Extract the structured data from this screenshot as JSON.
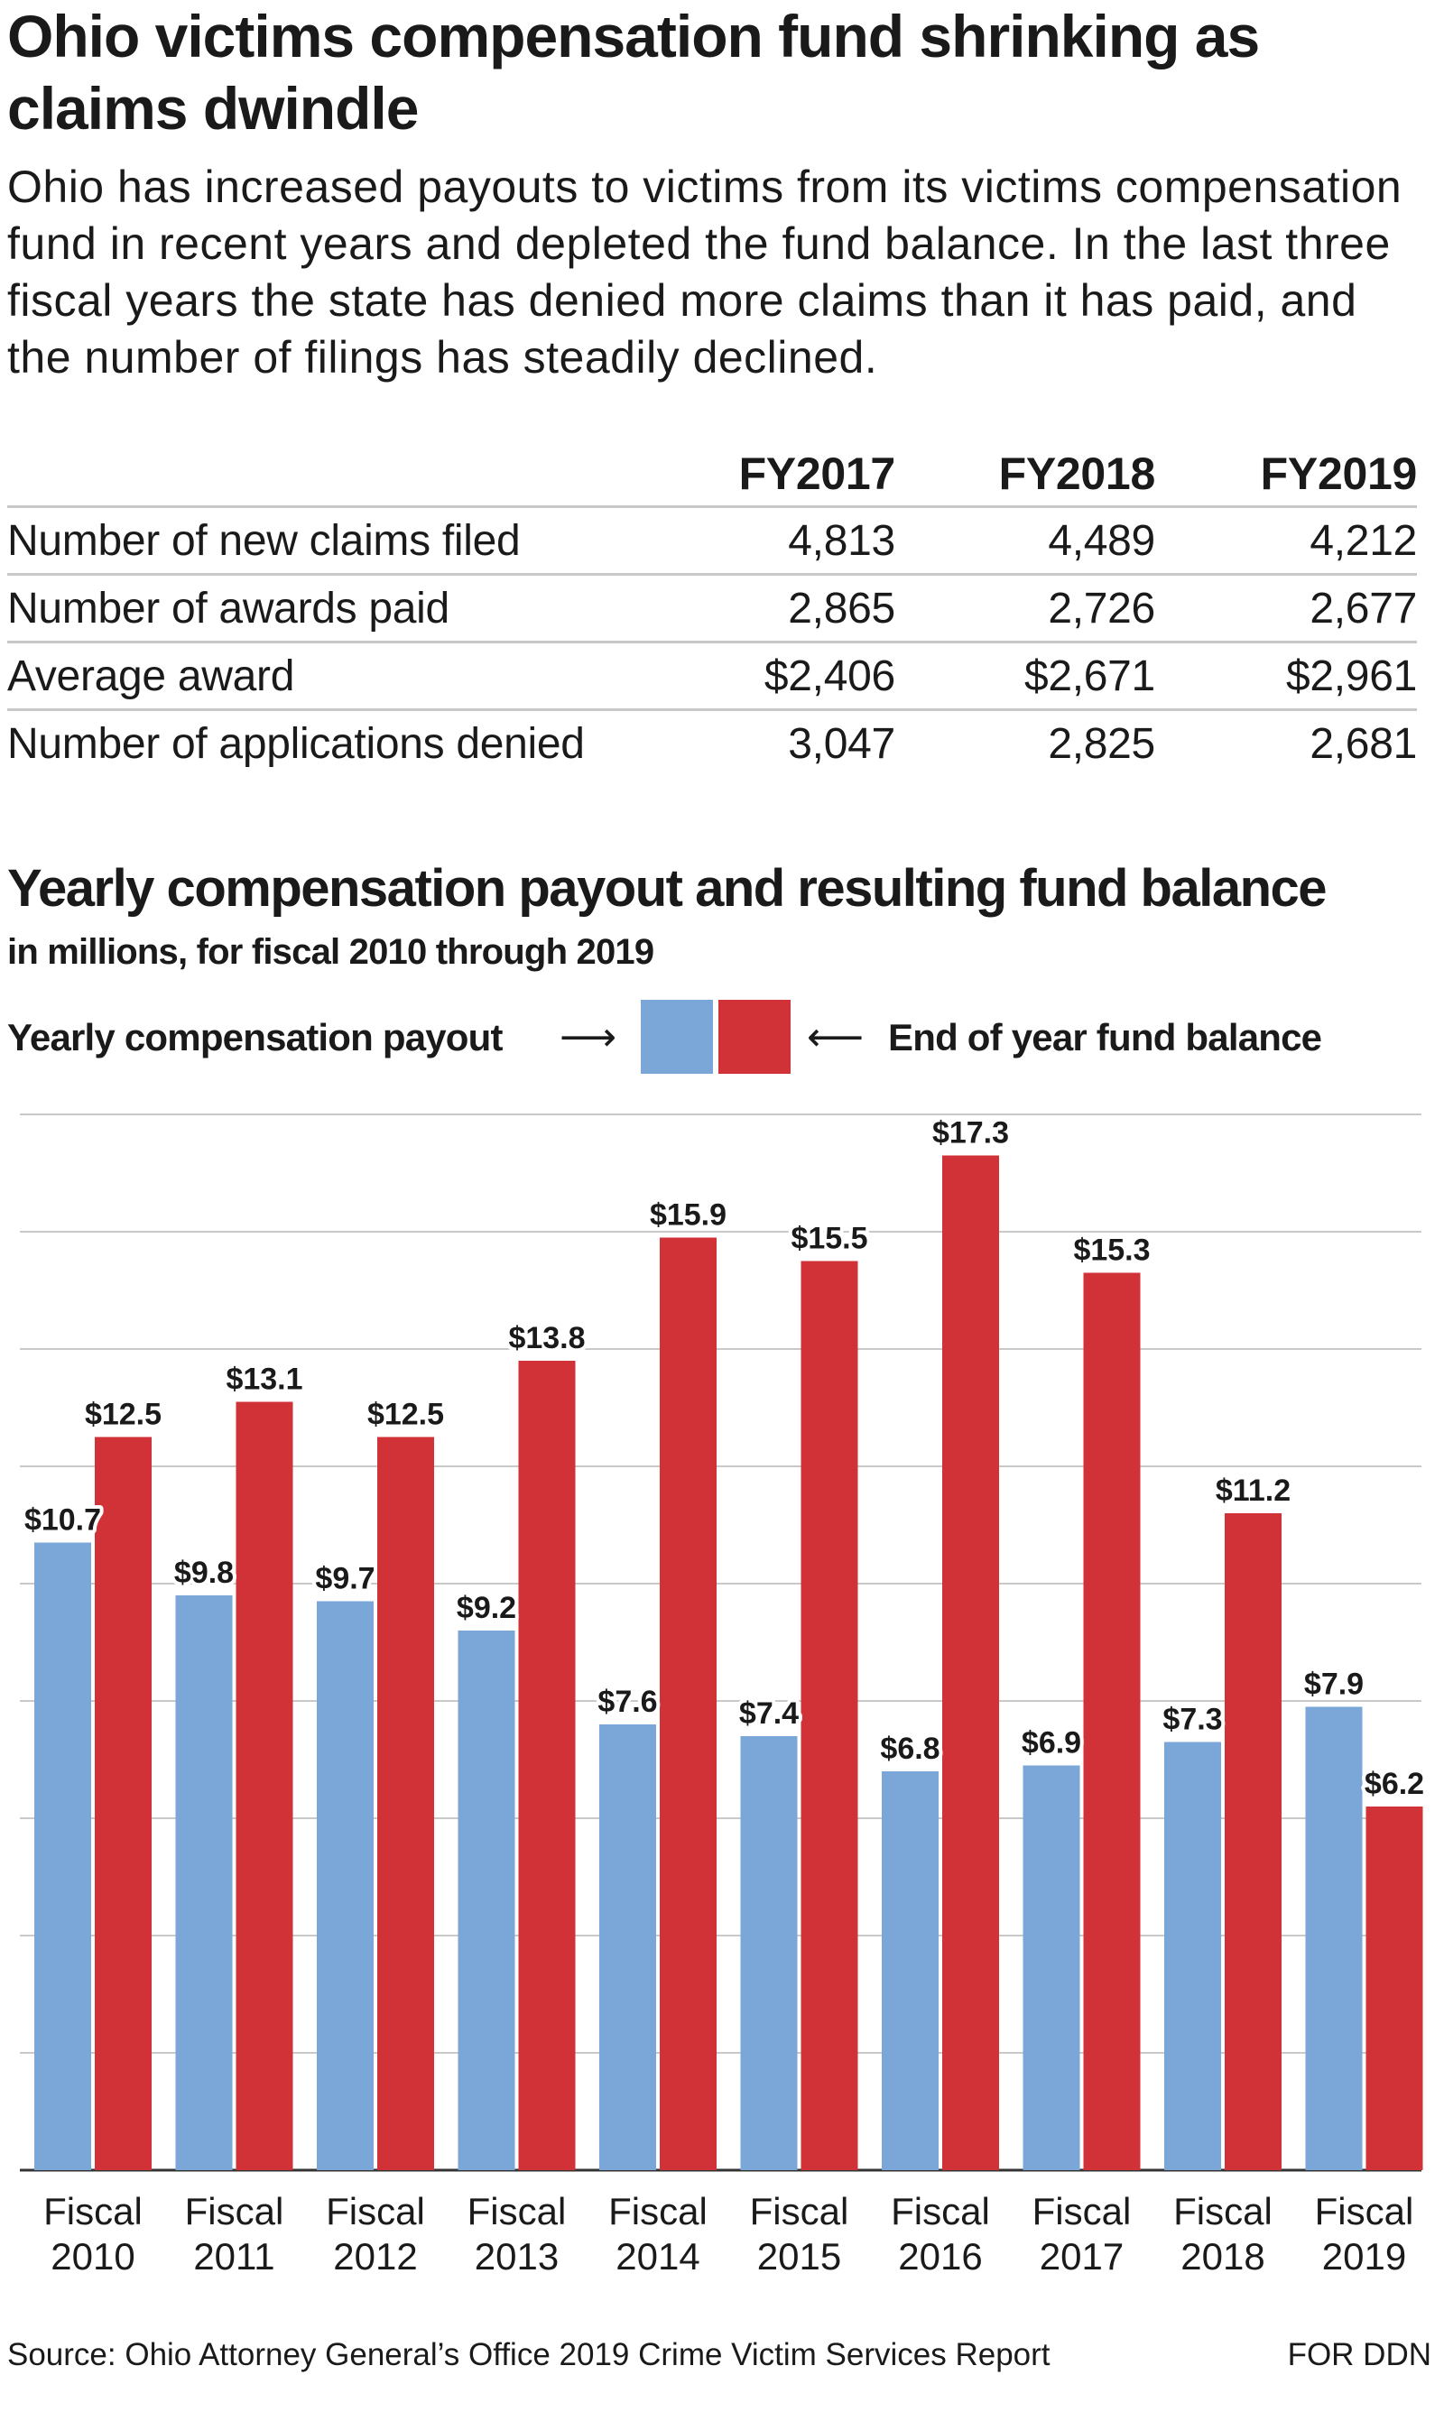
{
  "header": {
    "title": "Ohio victims compensation fund shrinking as claims dwindle",
    "intro": "Ohio has increased payouts to victims from its victims compensation fund in recent years and depleted the fund balance. In the last three fiscal years the state has denied more claims than it has paid, and the number of filings has steadily declined."
  },
  "table": {
    "columns": [
      "",
      "FY2017",
      "FY2018",
      "FY2019"
    ],
    "rows": [
      {
        "label": "Number of new claims filed",
        "values": [
          "4,813",
          "4,489",
          "4,212"
        ]
      },
      {
        "label": "Number of awards paid",
        "values": [
          "2,865",
          "2,726",
          "2,677"
        ]
      },
      {
        "label": "Average award",
        "values": [
          "$2,406",
          "$2,671",
          "$2,961"
        ]
      },
      {
        "label": "Number of applications denied",
        "values": [
          "3,047",
          "2,825",
          "2,681"
        ]
      }
    ]
  },
  "chart_data": {
    "type": "bar",
    "title": "Yearly compensation payout and resulting fund balance",
    "subtitle": "in millions, for fiscal 2010 through 2019",
    "categories": [
      [
        "Fiscal",
        "2010"
      ],
      [
        "Fiscal",
        "2011"
      ],
      [
        "Fiscal",
        "2012"
      ],
      [
        "Fiscal",
        "2013"
      ],
      [
        "Fiscal",
        "2014"
      ],
      [
        "Fiscal",
        "2015"
      ],
      [
        "Fiscal",
        "2016"
      ],
      [
        "Fiscal",
        "2017"
      ],
      [
        "Fiscal",
        "2018"
      ],
      [
        "Fiscal",
        "2019"
      ]
    ],
    "series": [
      {
        "name": "Yearly compensation payout",
        "color": "#7aa6d8",
        "values": [
          10.7,
          9.8,
          9.7,
          9.2,
          7.6,
          7.4,
          6.8,
          6.9,
          7.3,
          7.9
        ],
        "labels": [
          "$10.7",
          "$9.8",
          "$9.7",
          "$9.2",
          "$7.6",
          "$7.4",
          "$6.8",
          "$6.9",
          "$7.3",
          "$7.9"
        ]
      },
      {
        "name": "End of year fund balance",
        "color": "#d13237",
        "values": [
          12.5,
          13.1,
          12.5,
          13.8,
          15.9,
          15.5,
          17.3,
          15.3,
          11.2,
          6.2
        ],
        "labels": [
          "$12.5",
          "$13.1",
          "$12.5",
          "$13.8",
          "$15.9",
          "$15.5",
          "$17.3",
          "$15.3",
          "$11.2",
          "$6.2"
        ]
      }
    ],
    "ylim": [
      0,
      18
    ],
    "grid": true,
    "xlabel": "",
    "ylabel": ""
  },
  "legend": {
    "left_label": "Yearly compensation payout",
    "right_label": "End of year fund balance",
    "left_arrow": "⟶",
    "right_arrow": "⟵",
    "blue": "#7aa6d8",
    "red": "#d13237"
  },
  "footer": {
    "source": "Source: Ohio Attorney General’s Office 2019 Crime Victim Services Report",
    "credit": "FOR DDN"
  }
}
